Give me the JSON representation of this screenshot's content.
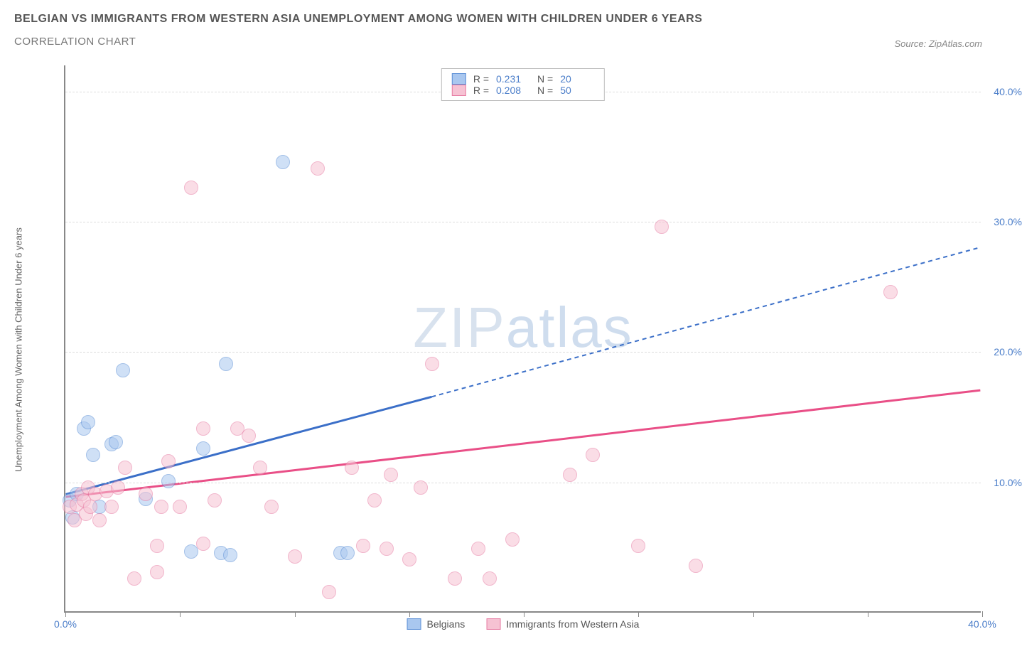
{
  "title_main": "BELGIAN VS IMMIGRANTS FROM WESTERN ASIA UNEMPLOYMENT AMONG WOMEN WITH CHILDREN UNDER 6 YEARS",
  "title_sub": "CORRELATION CHART",
  "source_label": "Source: ZipAtlas.com",
  "y_axis_title": "Unemployment Among Women with Children Under 6 years",
  "watermark_bold": "ZIP",
  "watermark_thin": "atlas",
  "chart": {
    "type": "scatter",
    "xlim": [
      0,
      40
    ],
    "ylim": [
      0,
      42
    ],
    "x_ticks": [
      0,
      5,
      10,
      15,
      20,
      25,
      30,
      35,
      40
    ],
    "x_tick_labels": {
      "0": "0.0%",
      "40": "40.0%"
    },
    "y_ticks": [
      10,
      20,
      30,
      40
    ],
    "y_tick_labels": {
      "10": "10.0%",
      "20": "20.0%",
      "30": "30.0%",
      "40": "40.0%"
    },
    "background_color": "#ffffff",
    "grid_color": "#dddddd",
    "axis_color": "#888888",
    "tick_label_color": "#4a7dc9",
    "marker_radius": 10,
    "marker_opacity": 0.55,
    "series": [
      {
        "key": "belgians",
        "name": "Belgians",
        "fill": "#a9c7ef",
        "stroke": "#5b8fd6",
        "line_color": "#3b6fc8",
        "r_value": "0.231",
        "n_value": "20",
        "trend": {
          "x1": 0,
          "y1": 9.0,
          "x2_solid": 16,
          "y2_solid": 16.5,
          "x2": 40,
          "y2": 28.0
        },
        "points": [
          [
            0.2,
            8.5
          ],
          [
            0.3,
            7.2
          ],
          [
            0.5,
            9.0
          ],
          [
            0.8,
            14.0
          ],
          [
            1.0,
            14.5
          ],
          [
            1.2,
            12.0
          ],
          [
            1.5,
            8.0
          ],
          [
            2.0,
            12.8
          ],
          [
            2.2,
            13.0
          ],
          [
            2.5,
            18.5
          ],
          [
            3.5,
            8.6
          ],
          [
            4.5,
            10.0
          ],
          [
            5.5,
            4.6
          ],
          [
            6.0,
            12.5
          ],
          [
            6.8,
            4.5
          ],
          [
            7.2,
            4.3
          ],
          [
            9.5,
            34.5
          ],
          [
            12.0,
            4.5
          ],
          [
            12.3,
            4.5
          ],
          [
            7.0,
            19.0
          ]
        ]
      },
      {
        "key": "immigrants",
        "name": "Immigrants from Western Asia",
        "fill": "#f6c2d3",
        "stroke": "#e77ca3",
        "line_color": "#e94f87",
        "r_value": "0.208",
        "n_value": "50",
        "trend": {
          "x1": 0,
          "y1": 8.8,
          "x2_solid": 40,
          "y2_solid": 17.0,
          "x2": 40,
          "y2": 17.0
        },
        "points": [
          [
            0.2,
            8.0
          ],
          [
            0.4,
            7.0
          ],
          [
            0.5,
            8.2
          ],
          [
            0.7,
            9.0
          ],
          [
            0.8,
            8.5
          ],
          [
            0.9,
            7.5
          ],
          [
            1.0,
            9.5
          ],
          [
            1.1,
            8.0
          ],
          [
            1.3,
            9.0
          ],
          [
            1.5,
            7.0
          ],
          [
            1.8,
            9.2
          ],
          [
            2.0,
            8.0
          ],
          [
            2.3,
            9.5
          ],
          [
            2.6,
            11.0
          ],
          [
            3.0,
            2.5
          ],
          [
            3.5,
            9.0
          ],
          [
            4.0,
            5.0
          ],
          [
            4.2,
            8.0
          ],
          [
            4.5,
            11.5
          ],
          [
            5.0,
            8.0
          ],
          [
            5.5,
            32.5
          ],
          [
            6.0,
            14.0
          ],
          [
            6.5,
            8.5
          ],
          [
            7.5,
            14.0
          ],
          [
            8.0,
            13.5
          ],
          [
            8.5,
            11.0
          ],
          [
            9.0,
            8.0
          ],
          [
            10.0,
            4.2
          ],
          [
            11.0,
            34.0
          ],
          [
            11.5,
            1.5
          ],
          [
            12.5,
            11.0
          ],
          [
            13.0,
            5.0
          ],
          [
            13.5,
            8.5
          ],
          [
            14.0,
            4.8
          ],
          [
            14.2,
            10.5
          ],
          [
            15.0,
            4.0
          ],
          [
            15.5,
            9.5
          ],
          [
            16.0,
            19.0
          ],
          [
            17.0,
            2.5
          ],
          [
            18.0,
            4.8
          ],
          [
            18.5,
            2.5
          ],
          [
            19.5,
            5.5
          ],
          [
            22.0,
            10.5
          ],
          [
            23.0,
            12.0
          ],
          [
            25.0,
            5.0
          ],
          [
            26.0,
            29.5
          ],
          [
            27.5,
            3.5
          ],
          [
            36.0,
            24.5
          ],
          [
            4.0,
            3.0
          ],
          [
            6.0,
            5.2
          ]
        ]
      }
    ]
  },
  "legend_top": {
    "r_label": "R =",
    "n_label": "N ="
  }
}
